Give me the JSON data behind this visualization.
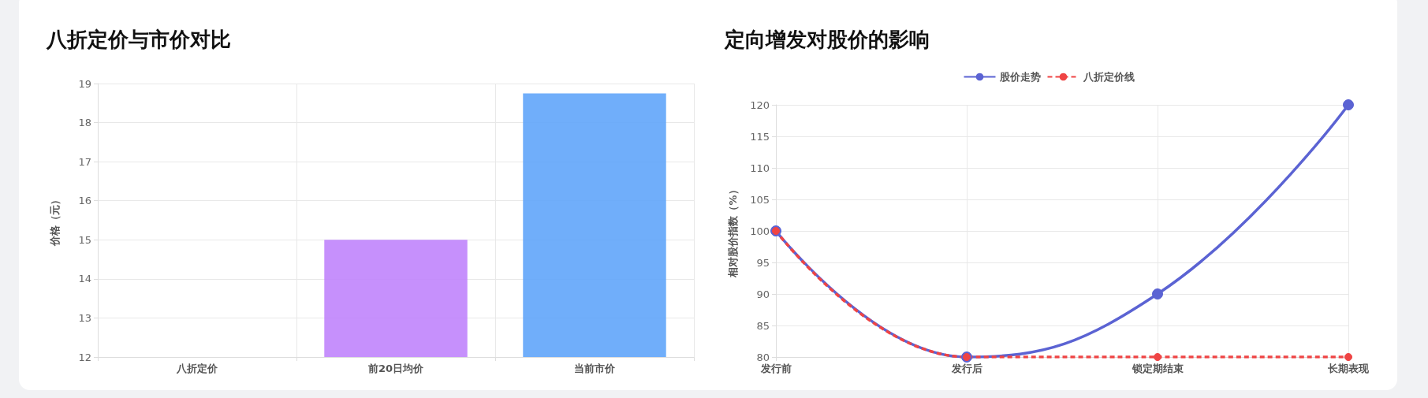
{
  "chart_data": [
    {
      "type": "bar",
      "title": "八折定价与市价对比",
      "ylabel": "价格（元）",
      "categories": [
        "八折定价",
        "前20日均价",
        "当前市价"
      ],
      "values": [
        12,
        15,
        18.75
      ],
      "colors": [
        "#34d399",
        "#c084fc",
        "#60a5fa"
      ],
      "ylim": [
        12,
        19
      ],
      "yticks": [
        12,
        13,
        14,
        15,
        16,
        17,
        18,
        19
      ],
      "grid": true
    },
    {
      "type": "line",
      "title": "定向增发对股价的影响",
      "ylabel": "相对股价指数（%）",
      "categories": [
        "发行前",
        "发行后",
        "锁定期结束",
        "长期表现"
      ],
      "legend": "top",
      "grid": true,
      "marker": "circle",
      "ylim": [
        80,
        120
      ],
      "yticks": [
        80,
        85,
        90,
        95,
        100,
        105,
        110,
        115,
        120
      ],
      "series": [
        {
          "name": "股价走势",
          "color": "#5b63d3",
          "values": [
            100,
            80,
            90,
            120
          ],
          "line_style": "solid"
        },
        {
          "name": "八折定价线",
          "color": "#ef4444",
          "values": [
            100,
            80,
            80,
            80
          ],
          "line_style": "dashed"
        }
      ]
    }
  ]
}
